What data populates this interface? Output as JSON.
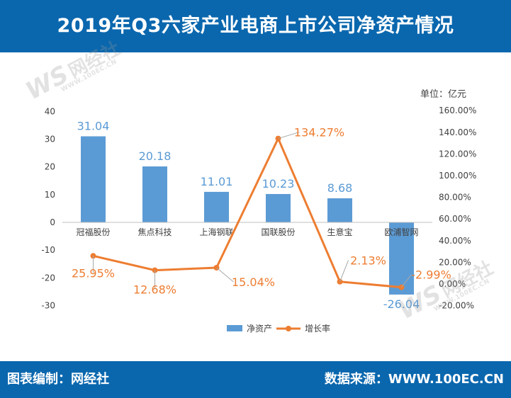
{
  "header": {
    "title": "2019年Q3六家产业电商上市公司净资产情况"
  },
  "unit": "单位：亿元",
  "footer": {
    "left": "图表编制：网经社",
    "right": "数据来源：WWW.100EC.CN"
  },
  "watermark": {
    "logo": "WS",
    "name": "网经社",
    "url": "WWW.100EC.CN"
  },
  "colors": {
    "bar": "#5b9bd5",
    "line": "#ed7d31",
    "header": "#0a67ae"
  },
  "chart_data": {
    "type": "bar",
    "title": "2019年Q3六家产业电商上市公司净资产情况",
    "categories": [
      "冠福股份",
      "焦点科技",
      "上海钢联",
      "国联股份",
      "生意宝",
      "欧浦智网"
    ],
    "series": [
      {
        "name": "净资产",
        "type": "bar",
        "axis": "left",
        "values": [
          31.04,
          20.18,
          11.01,
          10.23,
          8.68,
          -26.04
        ],
        "labels": [
          "31.04",
          "20.18",
          "11.01",
          "10.23",
          "8.68",
          "-26.04"
        ]
      },
      {
        "name": "增长率",
        "type": "line",
        "axis": "right",
        "values": [
          25.95,
          12.68,
          15.04,
          134.27,
          2.13,
          -2.99
        ],
        "labels": [
          "25.95%",
          "12.68%",
          "15.04%",
          "134.27%",
          "2.13%",
          "-2.99%"
        ]
      }
    ],
    "left_axis": {
      "min": -30,
      "max": 40,
      "ticks": [
        "40",
        "30",
        "20",
        "10",
        "0",
        "-10",
        "-20",
        "-30"
      ]
    },
    "right_axis": {
      "min": -20,
      "max": 160,
      "ticks": [
        "160.00%",
        "140.00%",
        "120.00%",
        "100.00%",
        "80.00%",
        "60.00%",
        "40.00%",
        "20.00%",
        "0.00%",
        "-20.00%"
      ]
    },
    "legend": {
      "position": "bottom",
      "items": [
        "净资产",
        "增长率"
      ]
    },
    "grid": false
  }
}
